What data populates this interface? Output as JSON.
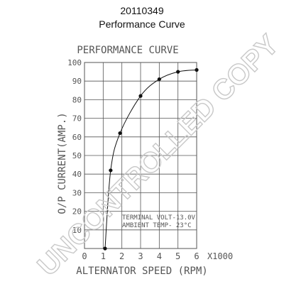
{
  "header": {
    "part_number": "20110349",
    "subtitle": "Performance Curve"
  },
  "watermark": "UNCONTROLLED COPY",
  "chart_data": {
    "type": "line",
    "title": "PERFORMANCE CURVE",
    "xlabel": "ALTERNATOR SPEED (RPM)",
    "xunit": "X1000",
    "ylabel": "O/P CURRENT(AMP.)",
    "xlim": [
      0,
      6
    ],
    "ylim": [
      0,
      100
    ],
    "xticks": [
      0,
      1,
      2,
      3,
      4,
      5,
      6
    ],
    "yticks": [
      10,
      20,
      30,
      40,
      50,
      60,
      70,
      80,
      90,
      100
    ],
    "grid": true,
    "points": [
      {
        "x": 1.1,
        "y": 0
      },
      {
        "x": 1.4,
        "y": 42
      },
      {
        "x": 1.9,
        "y": 62
      },
      {
        "x": 3.0,
        "y": 82
      },
      {
        "x": 4.0,
        "y": 91
      },
      {
        "x": 5.0,
        "y": 95
      },
      {
        "x": 6.0,
        "y": 96
      }
    ],
    "annotations": [
      "TERMINAL VOLT-13.0V",
      "AMBIENT TEMP-  23°C"
    ],
    "colors": {
      "curve": "#111111",
      "grid": "#555555",
      "text": "#555555",
      "watermark": "#cccccc"
    }
  }
}
